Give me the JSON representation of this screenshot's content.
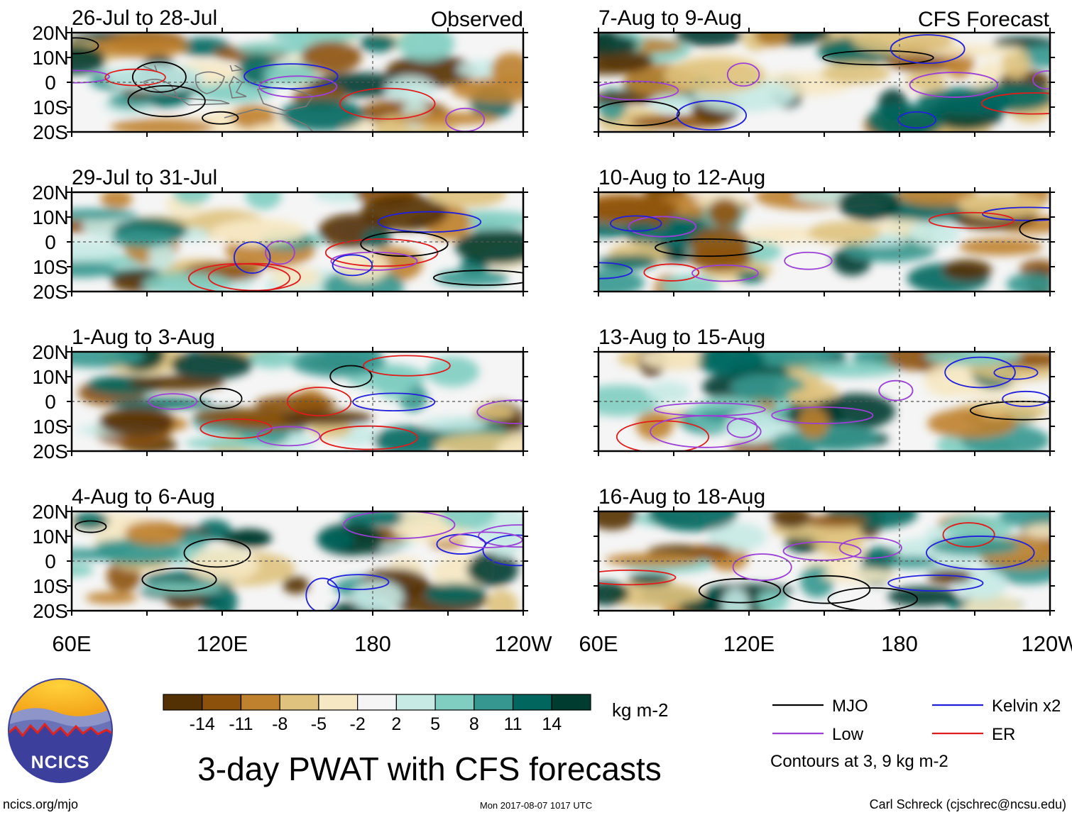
{
  "figure_title": "3-day PWAT with CFS forecasts",
  "column_labels": {
    "left": "Observed",
    "right": "CFS Forecast"
  },
  "lat_ticks": [
    "20N",
    "10N",
    "0",
    "10S",
    "20S"
  ],
  "lon_ticks": [
    "60E",
    "120E",
    "180",
    "120W"
  ],
  "panels_left": [
    {
      "title": "26-Jul to 28-Jul"
    },
    {
      "title": "29-Jul to 31-Jul"
    },
    {
      "title": "1-Aug to 3-Aug"
    },
    {
      "title": "4-Aug to 6-Aug"
    }
  ],
  "panels_right": [
    {
      "title": "7-Aug to 9-Aug"
    },
    {
      "title": "10-Aug to 12-Aug"
    },
    {
      "title": "13-Aug to 15-Aug"
    },
    {
      "title": "16-Aug to 18-Aug"
    }
  ],
  "colorbar": {
    "units": "kg m-2",
    "tick_labels": [
      "-14",
      "-11",
      "-8",
      "-5",
      "-2",
      "2",
      "5",
      "8",
      "11",
      "14"
    ],
    "colors": [
      "#543005",
      "#8c510a",
      "#bf812d",
      "#dfc27d",
      "#f6e8c3",
      "#f5f5f5",
      "#c7eae5",
      "#80cdc1",
      "#35978f",
      "#01665e",
      "#003c30"
    ]
  },
  "legend": {
    "items": [
      {
        "label": "MJO",
        "color": "#000000"
      },
      {
        "label": "Kelvin x2",
        "color": "#1f1fdc"
      },
      {
        "label": "Low",
        "color": "#9b3fd6"
      },
      {
        "label": "ER",
        "color": "#e01b1b"
      }
    ],
    "note": "Contours at 3, 9 kg m-2"
  },
  "logo": {
    "text": "NCICS"
  },
  "footer": {
    "website": "ncics.org/mjo",
    "timestamp": "Mon 2017-08-07 1017 UTC",
    "credit": "Carl Schreck (cjschrec@ncsu.edu)"
  }
}
